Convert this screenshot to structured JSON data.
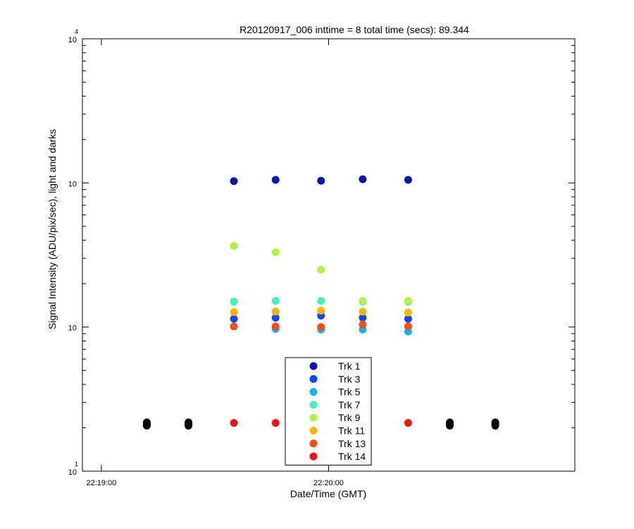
{
  "chart_data": {
    "type": "scatter",
    "title": "R20120917_006 inttime = 8 total time (secs): 89.344",
    "xlabel": "Date/Time (GMT)",
    "ylabel": "Signal Intensity (ADU/pix/sec), light and darks",
    "yscale": "log",
    "ylim": [
      10,
      10000
    ],
    "xlim": [
      "22:18:55",
      "22:21:05"
    ],
    "y_ticks": [
      {
        "value": 10,
        "base": "10",
        "exp": "1"
      },
      {
        "value": 100,
        "base": "10",
        "exp": ""
      },
      {
        "value": 1000,
        "base": "10",
        "exp": ""
      },
      {
        "value": 10000,
        "base": "10",
        "exp": "4"
      }
    ],
    "x_ticks": [
      "22:19:00",
      "22:20:00"
    ],
    "legend_position": "bottom-center",
    "series": [
      {
        "name": "Trk 1",
        "color": "#0a14a8",
        "x": [
          "22:19:35",
          "22:19:46",
          "22:19:58",
          "22:20:09",
          "22:20:21"
        ],
        "y": [
          1030,
          1050,
          1035,
          1060,
          1050
        ]
      },
      {
        "name": "Trk 3",
        "color": "#1446f0",
        "x": [
          "22:19:35",
          "22:19:46",
          "22:19:58",
          "22:20:09",
          "22:20:21"
        ],
        "y": [
          114,
          116,
          120,
          116,
          114
        ]
      },
      {
        "name": "Trk 5",
        "color": "#14b4f0",
        "x": [
          "22:19:46",
          "22:19:58",
          "22:20:09",
          "22:20:21"
        ],
        "y": [
          97,
          96,
          96,
          93
        ]
      },
      {
        "name": "Trk 7",
        "color": "#46f0be",
        "x": [
          "22:19:35",
          "22:19:46",
          "22:19:58",
          "22:20:09",
          "22:20:21"
        ],
        "y": [
          150,
          152,
          152,
          150,
          150
        ]
      },
      {
        "name": "Trk 9",
        "color": "#b4f046",
        "x": [
          "22:19:35",
          "22:19:46",
          "22:19:58",
          "22:20:09",
          "22:20:21"
        ],
        "y": [
          365,
          330,
          250,
          152,
          152
        ]
      },
      {
        "name": "Trk 11",
        "color": "#ffb400",
        "x": [
          "22:19:35",
          "22:19:46",
          "22:19:58",
          "22:20:09",
          "22:20:21"
        ],
        "y": [
          127,
          128,
          130,
          128,
          126
        ]
      },
      {
        "name": "Trk 13",
        "color": "#f05014",
        "x": [
          "22:19:35",
          "22:19:46",
          "22:19:58",
          "22:20:09",
          "22:20:21"
        ],
        "y": [
          101,
          101,
          100,
          104,
          101
        ]
      },
      {
        "name": "Trk 14",
        "color": "#f01414",
        "x": [
          "22:19:35",
          "22:19:46",
          "22:19:58",
          "22:20:09",
          "22:20:21"
        ],
        "y": [
          21.6,
          21.6,
          21.6,
          21.6,
          21.6
        ]
      },
      {
        "name": "",
        "color": "#000000",
        "x": [
          "22:19:12",
          "22:19:12",
          "22:19:12",
          "22:19:23",
          "22:19:23",
          "22:19:23",
          "22:20:32",
          "22:20:32",
          "22:20:32",
          "22:20:44",
          "22:20:44",
          "22:20:44"
        ],
        "y": [
          21.8,
          21.2,
          20.7,
          21.8,
          21.2,
          20.7,
          21.8,
          21.2,
          20.7,
          21.8,
          21.2,
          20.7
        ]
      }
    ]
  }
}
